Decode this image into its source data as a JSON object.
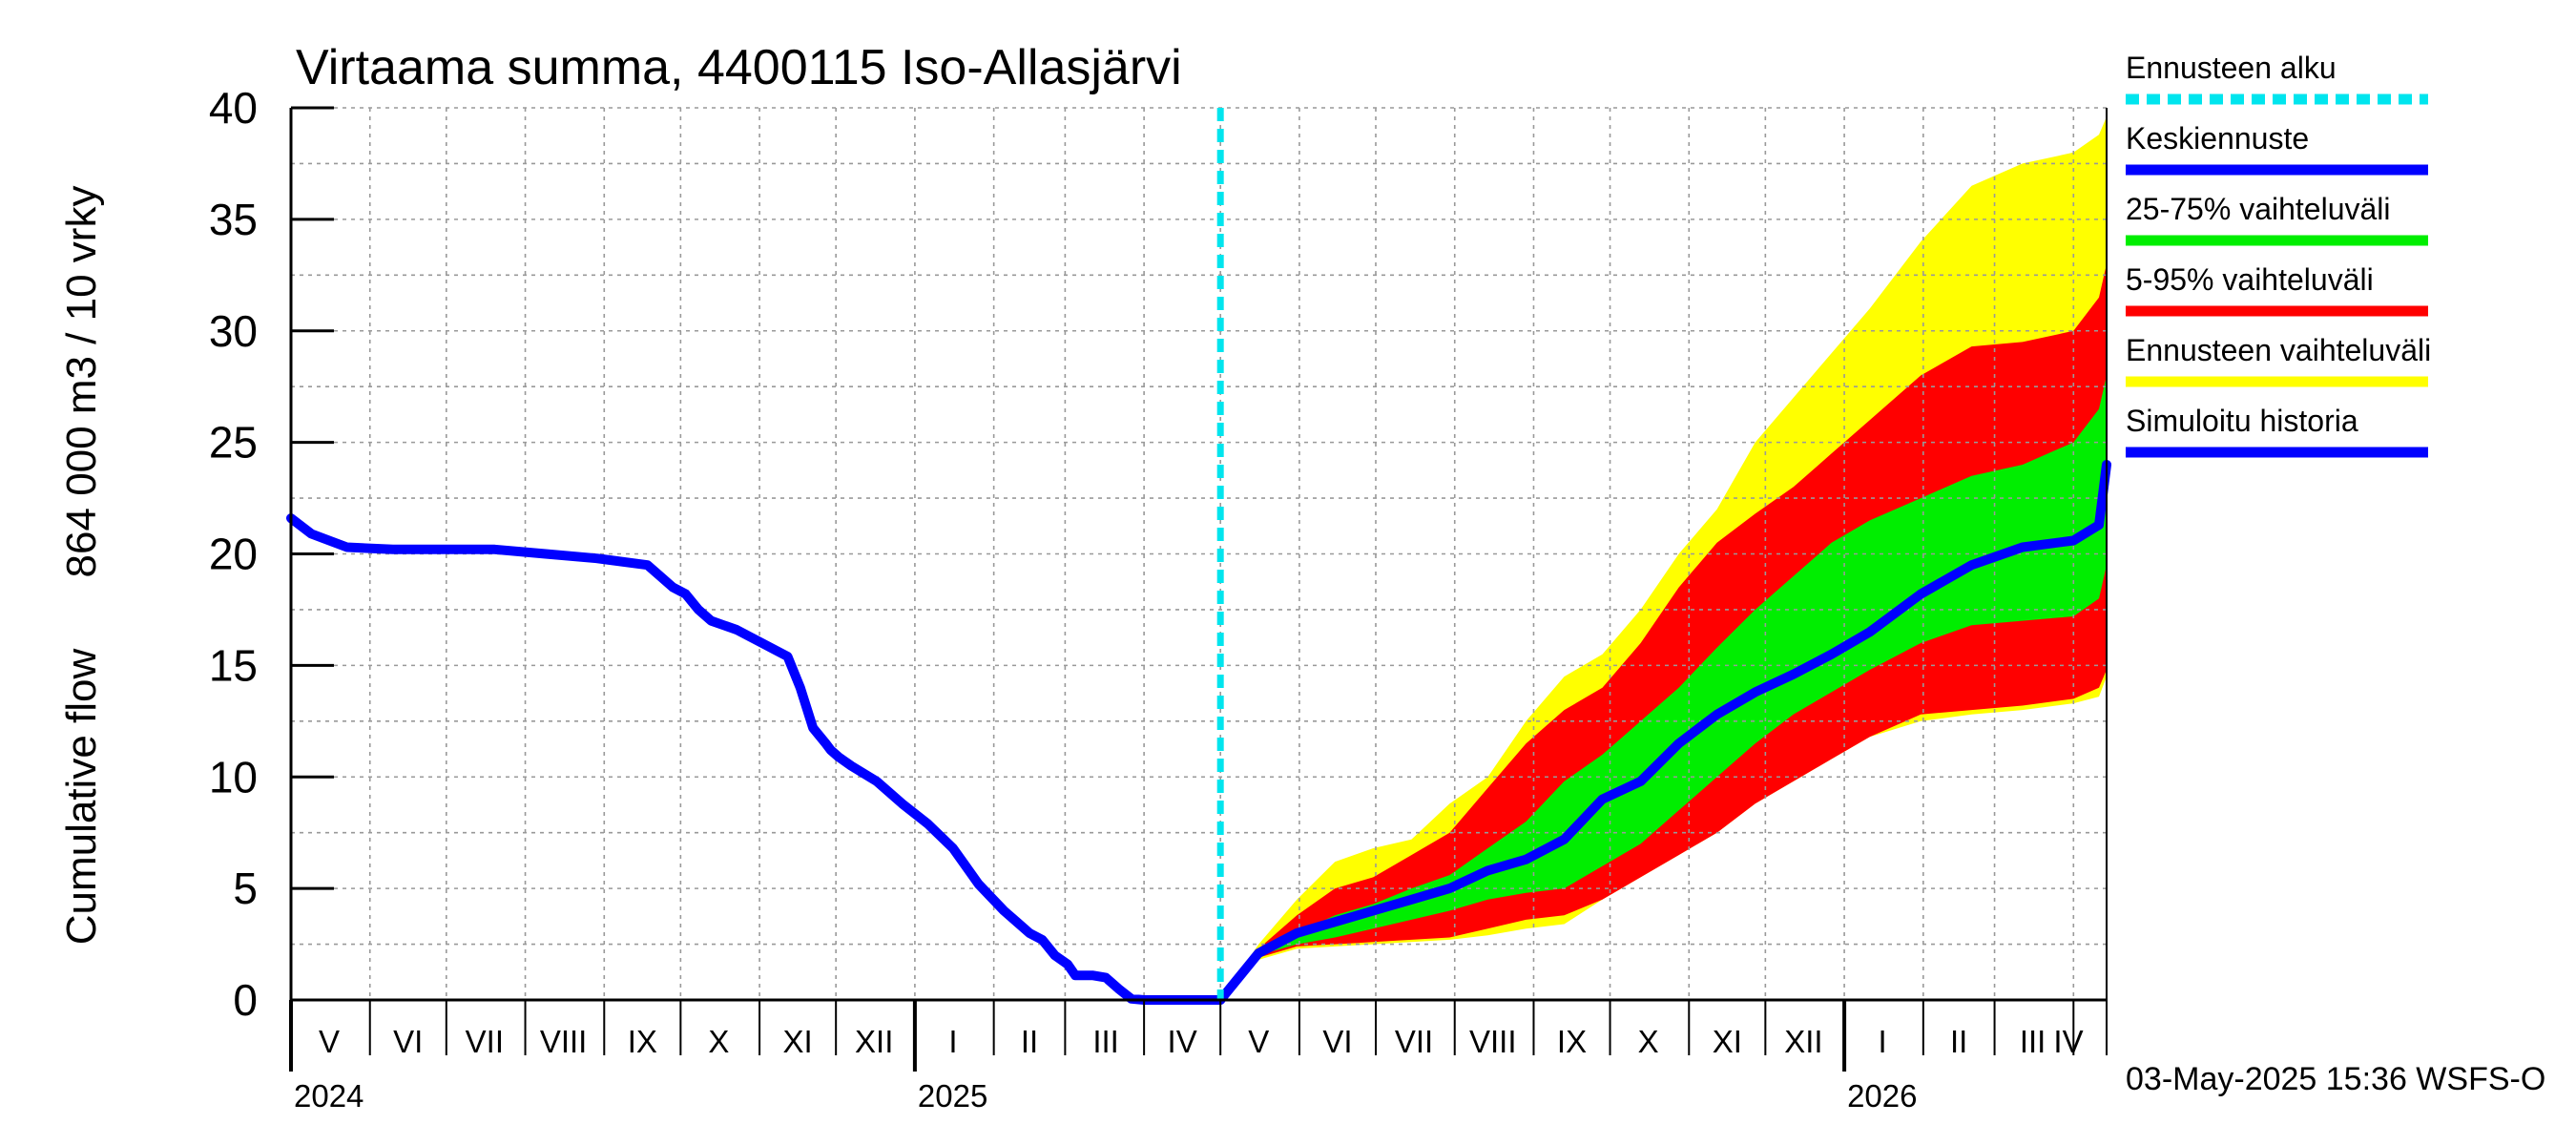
{
  "chart_data": {
    "type": "area",
    "title": "Virtaama summa, 4400115 Iso-Allasjärvi",
    "ylabel_line1": "Cumulative flow",
    "ylabel_line2": "864 000 m3 / 10 vrky",
    "ylim": [
      0,
      40
    ],
    "yticks": [
      0,
      5,
      10,
      15,
      20,
      25,
      30,
      35,
      40
    ],
    "x_range_days": [
      0,
      713
    ],
    "month_labels": [
      {
        "label": "V",
        "day": 15
      },
      {
        "label": "VI",
        "day": 46
      },
      {
        "label": "VII",
        "day": 76
      },
      {
        "label": "VIII",
        "day": 107
      },
      {
        "label": "IX",
        "day": 138
      },
      {
        "label": "X",
        "day": 168
      },
      {
        "label": "XI",
        "day": 199
      },
      {
        "label": "XII",
        "day": 229
      },
      {
        "label": "I",
        "day": 260
      },
      {
        "label": "II",
        "day": 290
      },
      {
        "label": "III",
        "day": 320
      },
      {
        "label": "IV",
        "day": 350
      },
      {
        "label": "V",
        "day": 380
      },
      {
        "label": "VI",
        "day": 411
      },
      {
        "label": "VII",
        "day": 441
      },
      {
        "label": "VIII",
        "day": 472
      },
      {
        "label": "IX",
        "day": 503
      },
      {
        "label": "X",
        "day": 533
      },
      {
        "label": "XI",
        "day": 564
      },
      {
        "label": "XII",
        "day": 594
      },
      {
        "label": "I",
        "day": 625
      },
      {
        "label": "II",
        "day": 655
      },
      {
        "label": "III",
        "day": 684
      },
      {
        "label": "IV",
        "day": 714
      }
    ],
    "month_boundaries": [
      0,
      31,
      61,
      92,
      123,
      153,
      184,
      214,
      245,
      276,
      304,
      335,
      365,
      396,
      426,
      457,
      488,
      518,
      549,
      579,
      610,
      641,
      669,
      700,
      713
    ],
    "year_labels": [
      {
        "label": "2024",
        "day": 0
      },
      {
        "label": "2025",
        "day": 245
      },
      {
        "label": "2026",
        "day": 610
      }
    ],
    "forecast_start_day": 365,
    "legend": [
      {
        "label": "Ennusteen alku",
        "color": "#00e5ee",
        "style": "dashed"
      },
      {
        "label": "Keskiennuste",
        "color": "#0000ff",
        "style": "solid"
      },
      {
        "label": "25-75% vaihteluväli",
        "color": "#00ee00",
        "style": "solid"
      },
      {
        "label": "5-95% vaihteluväli",
        "color": "#ff0000",
        "style": "solid"
      },
      {
        "label": "Ennusteen vaihteluväli",
        "color": "#ffff00",
        "style": "solid"
      },
      {
        "label": "Simuloitu historia",
        "color": "#0000ff",
        "style": "solid"
      }
    ],
    "colors": {
      "history": "#0000ff",
      "median": "#0000ff",
      "band_full": "#ffff00",
      "band_5_95": "#ff0000",
      "band_25_75": "#00ee00",
      "forecast_start": "#00e5ee",
      "grid": "#999999"
    },
    "history": {
      "x": [
        0,
        8,
        15,
        22,
        40,
        60,
        80,
        100,
        120,
        140,
        145,
        150,
        155,
        160,
        165,
        170,
        175,
        180,
        185,
        190,
        195,
        200,
        205,
        210,
        212,
        215,
        220,
        230,
        240,
        250,
        260,
        270,
        280,
        285,
        290,
        295,
        300,
        305,
        308,
        310,
        315,
        320,
        325,
        330,
        335,
        340,
        350,
        360,
        365
      ],
      "y": [
        21.6,
        20.9,
        20.6,
        20.3,
        20.2,
        20.2,
        20.2,
        20.0,
        19.8,
        19.5,
        19.0,
        18.5,
        18.2,
        17.5,
        17.0,
        16.8,
        16.6,
        16.3,
        16.0,
        15.7,
        15.4,
        14.0,
        12.2,
        11.5,
        11.2,
        10.9,
        10.5,
        9.8,
        8.8,
        7.9,
        6.8,
        5.2,
        4.0,
        3.5,
        3.0,
        2.7,
        2.0,
        1.6,
        1.1,
        1.1,
        1.1,
        1.0,
        0.5,
        0.05,
        0.0,
        0.0,
        0.0,
        0.0,
        0.0
      ]
    },
    "forecast": {
      "x": [
        365,
        380,
        395,
        410,
        425,
        440,
        455,
        470,
        485,
        500,
        515,
        530,
        545,
        560,
        575,
        590,
        605,
        620,
        640,
        660,
        680,
        700,
        710,
        713
      ],
      "max": [
        0,
        2.5,
        4.5,
        6.2,
        6.8,
        7.2,
        8.8,
        10.0,
        12.5,
        14.5,
        15.5,
        17.5,
        20.0,
        22.0,
        25.0,
        27.0,
        29.0,
        31.0,
        34.0,
        36.5,
        37.5,
        38.0,
        38.8,
        39.6
      ],
      "p95": [
        0,
        2.3,
        3.8,
        5.0,
        5.5,
        6.5,
        7.5,
        9.5,
        11.5,
        13.0,
        14.0,
        16.0,
        18.5,
        20.5,
        21.8,
        23.0,
        24.5,
        26.0,
        28.0,
        29.3,
        29.5,
        30.0,
        31.5,
        33.0
      ],
      "p75": [
        0,
        2.2,
        3.0,
        3.8,
        4.3,
        5.0,
        5.6,
        6.8,
        8.0,
        9.8,
        11.0,
        12.5,
        14.0,
        15.8,
        17.5,
        19.0,
        20.5,
        21.5,
        22.5,
        23.5,
        24.0,
        25.0,
        26.5,
        28.0
      ],
      "median": [
        0,
        2.1,
        3.0,
        3.5,
        4.0,
        4.5,
        5.0,
        5.8,
        6.3,
        7.2,
        9.0,
        9.8,
        11.5,
        12.8,
        13.8,
        14.6,
        15.5,
        16.5,
        18.2,
        19.5,
        20.3,
        20.6,
        21.3,
        24.0
      ],
      "p25": [
        0,
        2.0,
        2.5,
        2.8,
        3.2,
        3.6,
        4.0,
        4.5,
        4.8,
        5.0,
        6.0,
        7.0,
        8.5,
        10.0,
        11.5,
        12.8,
        13.8,
        14.8,
        16.0,
        16.8,
        17.0,
        17.2,
        18.0,
        19.5
      ],
      "p5": [
        0,
        1.9,
        2.4,
        2.5,
        2.6,
        2.7,
        2.8,
        3.2,
        3.6,
        3.8,
        4.5,
        5.5,
        6.5,
        7.5,
        8.8,
        9.8,
        10.8,
        11.8,
        12.8,
        13.0,
        13.2,
        13.5,
        14.0,
        14.8
      ],
      "min": [
        0,
        1.8,
        2.3,
        2.4,
        2.5,
        2.6,
        2.7,
        2.9,
        3.2,
        3.4,
        4.5,
        5.5,
        6.5,
        7.5,
        8.8,
        9.8,
        10.8,
        11.8,
        12.5,
        12.8,
        13.0,
        13.3,
        13.6,
        14.5
      ]
    }
  },
  "footer": {
    "timestamp": "03-May-2025 15:36 WSFS-O"
  }
}
